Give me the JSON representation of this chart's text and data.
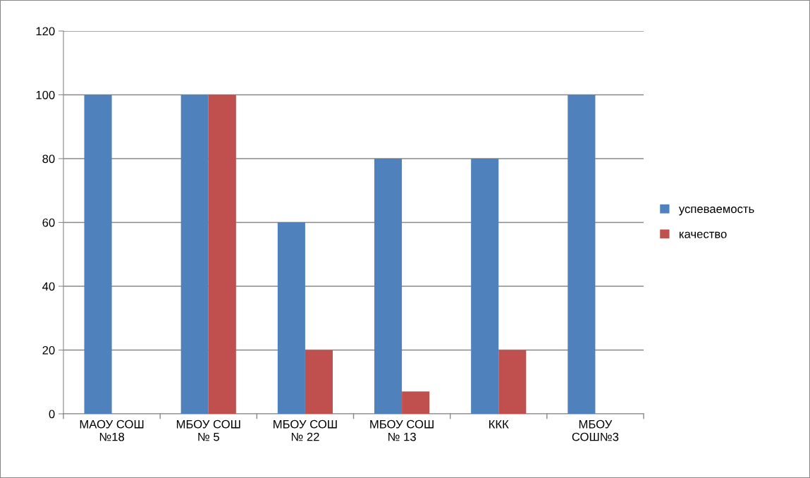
{
  "chart_data": {
    "type": "bar",
    "categories": [
      "МАОУ СОШ\n№18",
      "МБОУ СОШ\n№ 5",
      "МБОУ СОШ\n№ 22",
      "МБОУ СОШ\n№ 13",
      "ККК",
      "МБОУ\nСОШ№3"
    ],
    "series": [
      {
        "name": "успеваемость",
        "color": "#4f81bd",
        "values": [
          100,
          100,
          60,
          80,
          80,
          100
        ]
      },
      {
        "name": "качество",
        "color": "#c0504d",
        "values": [
          0,
          100,
          20,
          7,
          20,
          0
        ]
      }
    ],
    "ylim": [
      0,
      120
    ],
    "yticks": [
      0,
      20,
      40,
      60,
      80,
      100,
      120
    ],
    "grid": "y",
    "legend": "right"
  }
}
